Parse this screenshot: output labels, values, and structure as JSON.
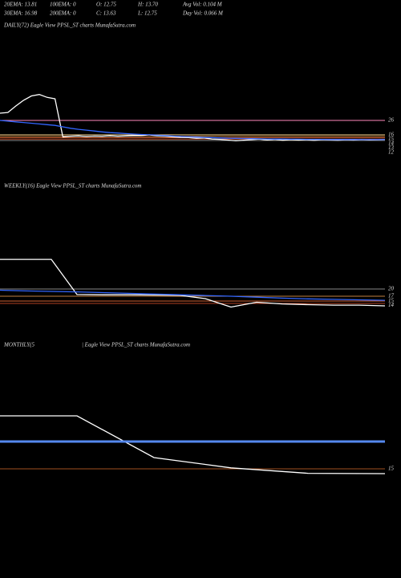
{
  "header": {
    "row1": [
      "20EMA: 13.81",
      "100EMA: 0",
      "O: 12.75",
      "H: 13.70",
      "Avg Vol: 0.104  M"
    ],
    "row2": [
      "30EMA: 16.98",
      "200EMA: 0",
      "C: 13.63",
      "L: 12.75",
      "Day Vol: 0.066  M"
    ]
  },
  "chart_data": [
    {
      "type": "line",
      "title": "DAILY(72) Eagle  View  PPSL_ST charts MunafaSutra.com",
      "ylim": [
        10,
        50
      ],
      "yticks": [
        26,
        16,
        15,
        14,
        13,
        12
      ],
      "tick_colors": [
        "#ff88bb",
        "#e0c080",
        "#c08040",
        "#d06030",
        "#b04020",
        "#888888"
      ],
      "series": [
        {
          "color": "#ffffff",
          "values": [
            31,
            31.5,
            36,
            40,
            43,
            44,
            42,
            41,
            14.5,
            15,
            15.2,
            14.8,
            15.1,
            15,
            15.3,
            15,
            15.2,
            15.5,
            15.4,
            16,
            15.2,
            15,
            14.5,
            14.2,
            14,
            13.6,
            13.8,
            13,
            12.8,
            12.3,
            11.8,
            12.2,
            12.6,
            13,
            12.4,
            12.8,
            12.2,
            12.6,
            12.3,
            12.5,
            12.1,
            12.6,
            12.4,
            12.2,
            12.5,
            12.3,
            12.6,
            12.4,
            12.5,
            12.7
          ]
        },
        {
          "color": "#3366ff",
          "values": [
            26,
            25.5,
            25,
            24.5,
            24,
            23.5,
            23,
            22.5,
            21.5,
            20.5,
            19.8,
            19.2,
            18.6,
            18,
            17.5,
            17.2,
            16.8,
            16.5,
            16.2,
            16,
            15.7,
            15.4,
            15.1,
            14.8,
            14.6,
            14.4,
            14.2,
            14,
            13.8,
            13.6,
            13.5,
            13.4,
            13.3,
            13.2,
            13.1,
            13,
            13,
            12.9,
            12.9,
            12.8,
            12.8,
            12.8,
            12.7,
            12.7,
            12.7,
            12.7,
            12.6,
            12.6,
            12.6,
            12.6
          ]
        }
      ]
    },
    {
      "type": "line",
      "title": "WEEKLY(16) Eagle  View  PPSL_ST charts MunafaSutra.com",
      "ylim": [
        8,
        40
      ],
      "yticks": [
        20,
        17,
        15,
        14
      ],
      "tick_colors": [
        "#888888",
        "#c08040",
        "#d06030",
        "#b04020"
      ],
      "series": [
        {
          "color": "#ffffff",
          "values": [
            32.3,
            32.3,
            32.3,
            17.7,
            17.6,
            17.6,
            17.5,
            17.4,
            16,
            12.5,
            14.5,
            13.8,
            13.5,
            13.3,
            13.3,
            13
          ]
        },
        {
          "color": "#3366ff",
          "values": [
            19.5,
            19.2,
            19,
            18.8,
            18.5,
            18.2,
            17.9,
            17.6,
            17.3,
            17,
            16.6,
            16.2,
            15.9,
            15.7,
            15.5,
            15.3
          ]
        }
      ]
    },
    {
      "type": "line",
      "title": "MONTHLY(5",
      "subtitle": "| Eagle  View  PPSL_ST charts MunafaSutra.com",
      "ylim": [
        5,
        45
      ],
      "yticks": [
        15
      ],
      "tick_colors": [
        "#a05020"
      ],
      "series": [
        {
          "color": "#ffffff",
          "values": [
            31.5,
            31.5,
            18.5,
            15.3,
            13.6,
            13.5
          ]
        },
        {
          "color": "#5588ee",
          "values": [
            23.5,
            23.5,
            23.5,
            23.5,
            23.5,
            23.5
          ]
        }
      ]
    }
  ]
}
